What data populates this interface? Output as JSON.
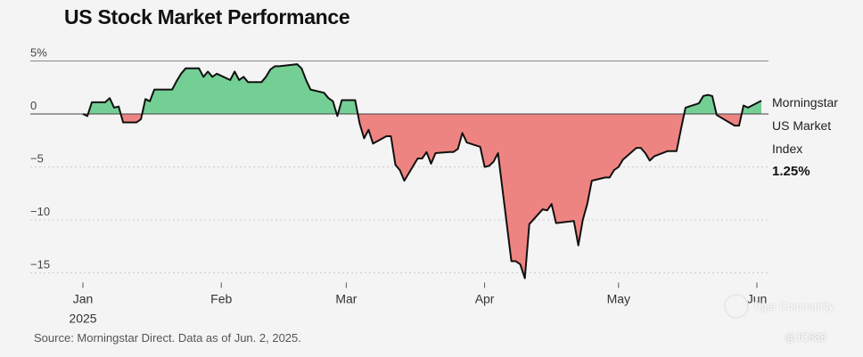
{
  "title": "US Stock Market Performance",
  "source": "Source: Morningstar Direct. Data as of Jun. 2, 2025.",
  "watermark": {
    "brand": "Tiger Community",
    "handle": "@JC888"
  },
  "chart_data": {
    "type": "area",
    "title": "US Stock Market Performance",
    "xlabel": "",
    "ylabel": "",
    "ylim": [
      -16,
      5
    ],
    "y_ticks": [
      5,
      0,
      -5,
      -10,
      -15
    ],
    "y_tick_labels": [
      "5%",
      "0",
      "−5",
      "−10",
      "−15"
    ],
    "x_ticks": [
      {
        "date": "2025-01-01",
        "label": "Jan",
        "sub": "2025"
      },
      {
        "date": "2025-02-01",
        "label": "Feb",
        "sub": ""
      },
      {
        "date": "2025-03-01",
        "label": "Mar",
        "sub": ""
      },
      {
        "date": "2025-04-01",
        "label": "Apr",
        "sub": ""
      },
      {
        "date": "2025-05-01",
        "label": "May",
        "sub": ""
      },
      {
        "date": "2025-06-01",
        "label": "Jun",
        "sub": ""
      }
    ],
    "colors": {
      "positive": "#74cf94",
      "negative": "#ee8481",
      "line": "#111111",
      "grid": "#cccccc",
      "zero": "#444444"
    },
    "series": [
      {
        "name": "Morningstar US Market Index",
        "last_value_label": "1.25%",
        "x": [
          "2025-01-01",
          "2025-01-02",
          "2025-01-03",
          "2025-01-06",
          "2025-01-07",
          "2025-01-08",
          "2025-01-09",
          "2025-01-10",
          "2025-01-13",
          "2025-01-14",
          "2025-01-15",
          "2025-01-16",
          "2025-01-17",
          "2025-01-21",
          "2025-01-22",
          "2025-01-23",
          "2025-01-24",
          "2025-01-27",
          "2025-01-28",
          "2025-01-29",
          "2025-01-30",
          "2025-01-31",
          "2025-02-03",
          "2025-02-04",
          "2025-02-05",
          "2025-02-06",
          "2025-02-07",
          "2025-02-10",
          "2025-02-11",
          "2025-02-12",
          "2025-02-13",
          "2025-02-14",
          "2025-02-18",
          "2025-02-19",
          "2025-02-20",
          "2025-02-21",
          "2025-02-24",
          "2025-02-25",
          "2025-02-26",
          "2025-02-27",
          "2025-02-28",
          "2025-03-03",
          "2025-03-04",
          "2025-03-05",
          "2025-03-06",
          "2025-03-07",
          "2025-03-10",
          "2025-03-11",
          "2025-03-12",
          "2025-03-13",
          "2025-03-14",
          "2025-03-17",
          "2025-03-18",
          "2025-03-19",
          "2025-03-20",
          "2025-03-21",
          "2025-03-24",
          "2025-03-25",
          "2025-03-26",
          "2025-03-27",
          "2025-03-28",
          "2025-03-31",
          "2025-04-01",
          "2025-04-02",
          "2025-04-03",
          "2025-04-04",
          "2025-04-07",
          "2025-04-08",
          "2025-04-09",
          "2025-04-10",
          "2025-04-11",
          "2025-04-14",
          "2025-04-15",
          "2025-04-16",
          "2025-04-17",
          "2025-04-21",
          "2025-04-22",
          "2025-04-23",
          "2025-04-24",
          "2025-04-25",
          "2025-04-28",
          "2025-04-29",
          "2025-04-30",
          "2025-05-01",
          "2025-05-02",
          "2025-05-05",
          "2025-05-06",
          "2025-05-07",
          "2025-05-08",
          "2025-05-09",
          "2025-05-12",
          "2025-05-13",
          "2025-05-14",
          "2025-05-15",
          "2025-05-16",
          "2025-05-19",
          "2025-05-20",
          "2025-05-21",
          "2025-05-22",
          "2025-05-23",
          "2025-05-27",
          "2025-05-28",
          "2025-05-29",
          "2025-05-30",
          "2025-06-02"
        ],
        "values": [
          0.0,
          -0.2,
          1.1,
          1.1,
          1.5,
          0.6,
          0.7,
          -0.8,
          -0.8,
          -0.5,
          1.4,
          1.2,
          2.3,
          2.3,
          3.1,
          3.8,
          4.3,
          4.3,
          3.5,
          4.0,
          3.5,
          3.8,
          3.2,
          4.0,
          3.2,
          3.5,
          3.0,
          3.0,
          3.5,
          4.2,
          4.5,
          4.5,
          4.7,
          4.3,
          3.2,
          2.3,
          2.0,
          1.5,
          1.2,
          -0.2,
          1.3,
          1.3,
          -0.9,
          -2.3,
          -1.5,
          -2.8,
          -2.1,
          -2.1,
          -4.8,
          -5.3,
          -6.3,
          -4.2,
          -4.2,
          -3.6,
          -4.7,
          -3.7,
          -3.6,
          -3.6,
          -3.3,
          -1.8,
          -2.7,
          -3.1,
          -5.0,
          -4.9,
          -4.5,
          -3.7,
          -13.9,
          -13.9,
          -14.2,
          -15.5,
          -10.4,
          -9.0,
          -9.1,
          -8.5,
          -10.3,
          -10.1,
          -12.4,
          -10.0,
          -8.5,
          -6.3,
          -6.0,
          -6.0,
          -5.3,
          -5.0,
          -4.3,
          -3.2,
          -3.2,
          -3.7,
          -4.4,
          -4.0,
          -3.5,
          -3.5,
          -3.5,
          -1.4,
          0.6,
          1.0,
          1.7,
          1.8,
          1.7,
          -0.1,
          -1.1,
          -1.1,
          0.8,
          0.6,
          1.25
        ]
      }
    ]
  }
}
